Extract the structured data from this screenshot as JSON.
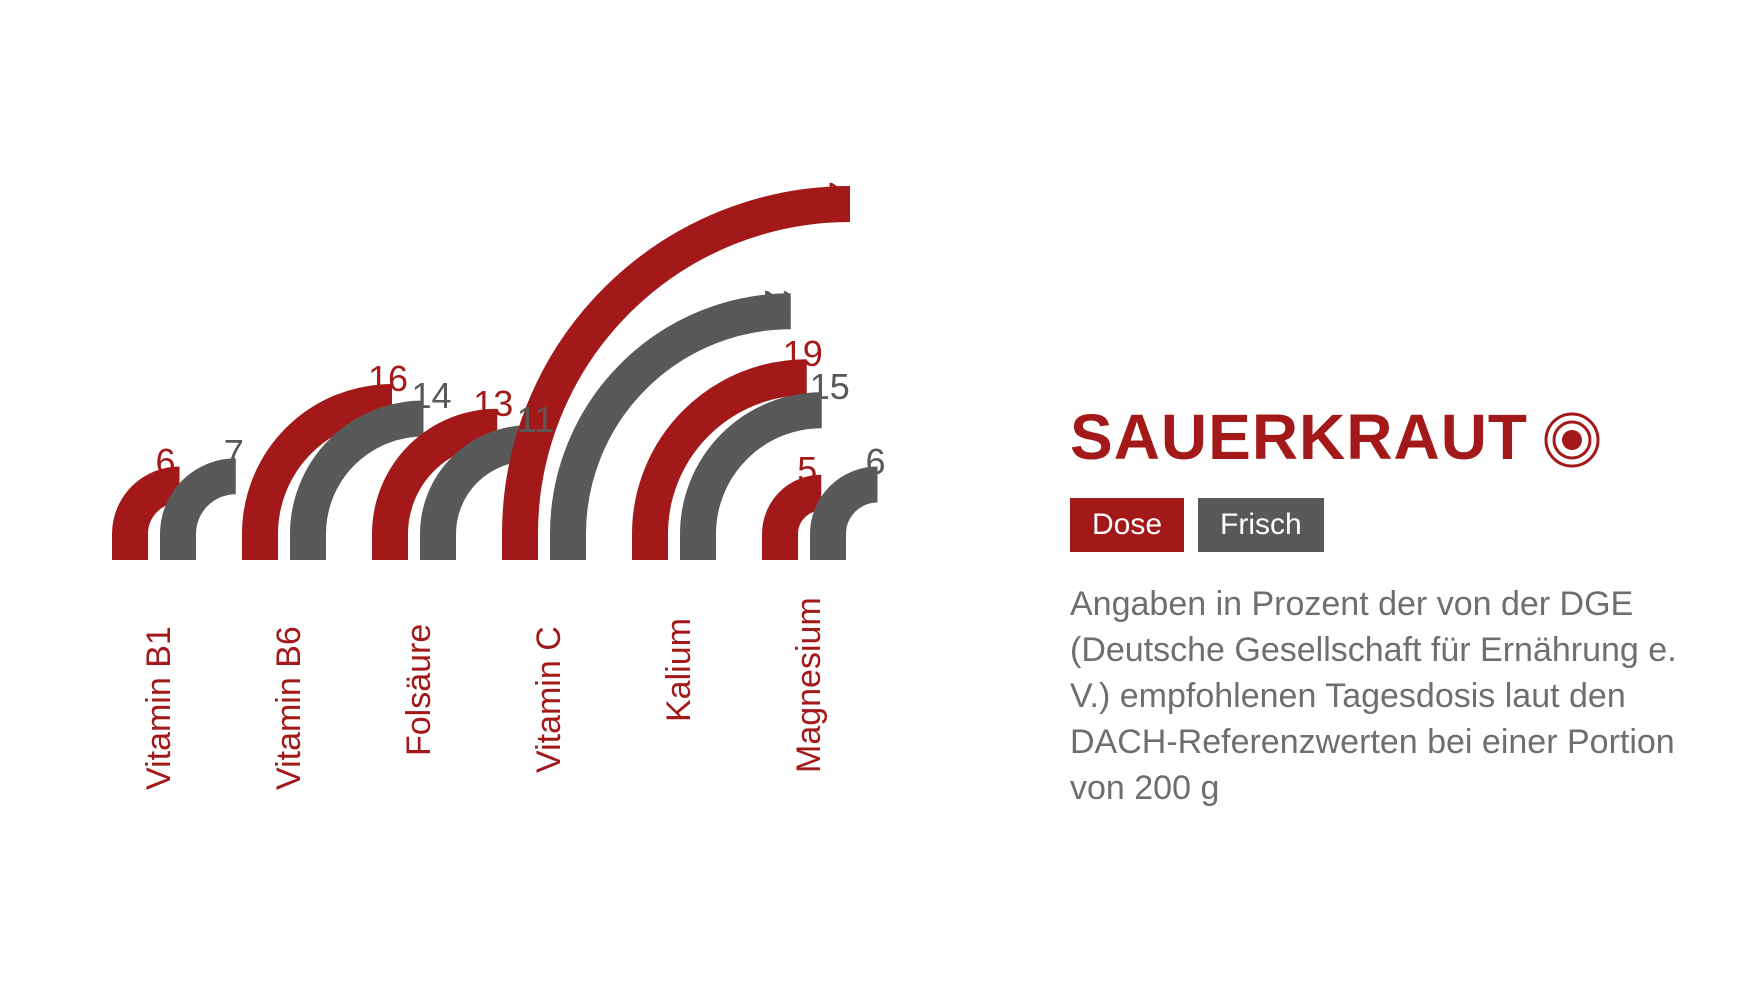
{
  "title": "SAUERKRAUT",
  "colors": {
    "dose": "#a31919",
    "frisch": "#595959",
    "text_muted": "#6e6e6e",
    "background": "#ffffff"
  },
  "legend": {
    "dose_label": "Dose",
    "frisch_label": "Frisch"
  },
  "description": "Angaben in Prozent der von der DGE (Deutsche Gesellschaft für Ernährung e. V.) empfohlenen Tagesdosis laut den DACH-Referenzwerten bei einer Portion von 200 g",
  "chart": {
    "type": "curved-bar",
    "max_value": 40,
    "stroke_width": 36,
    "label_fontsize": 34,
    "value_fontsize": 36,
    "categories": [
      {
        "name": "Vitamin B1",
        "dose": 6,
        "frisch": 7
      },
      {
        "name": "Vitamin B6",
        "dose": 16,
        "frisch": 14
      },
      {
        "name": "Folsäure",
        "dose": 13,
        "frisch": 11
      },
      {
        "name": "Vitamin C",
        "dose": 40,
        "frisch": 27
      },
      {
        "name": "Kalium",
        "dose": 19,
        "frisch": 15
      },
      {
        "name": "Magnesium",
        "dose": 5,
        "frisch": 6
      }
    ]
  }
}
